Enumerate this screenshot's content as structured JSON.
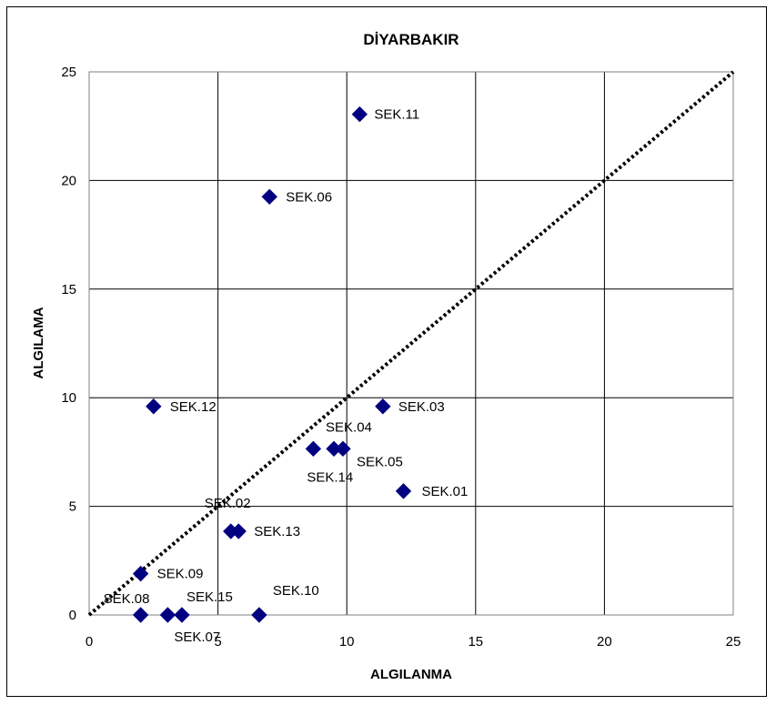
{
  "chart_data": {
    "type": "scatter",
    "title": "DİYARBAKIR",
    "xlabel": "ALGILANMA",
    "ylabel": "ALGILAMA",
    "xlim": [
      0,
      25
    ],
    "ylim": [
      0,
      25
    ],
    "xticks": [
      0,
      5,
      10,
      15,
      20,
      25
    ],
    "yticks": [
      0,
      5,
      10,
      15,
      20,
      25
    ],
    "grid": true,
    "legend": "none",
    "marker_color": "#000080",
    "reference_line": {
      "from": [
        0,
        0
      ],
      "to": [
        25,
        25
      ],
      "style": "dotted",
      "color": "#000000"
    },
    "points": [
      {
        "label": "SEK.01",
        "x": 12.2,
        "y": 5.7
      },
      {
        "label": "SEK.02",
        "x": 5.5,
        "y": 3.85
      },
      {
        "label": "SEK.03",
        "x": 11.4,
        "y": 9.6
      },
      {
        "label": "SEK.04",
        "x": 9.5,
        "y": 7.65
      },
      {
        "label": "SEK.05",
        "x": 9.85,
        "y": 7.65
      },
      {
        "label": "SEK.06",
        "x": 7.0,
        "y": 19.25
      },
      {
        "label": "SEK.07",
        "x": 3.05,
        "y": 0
      },
      {
        "label": "SEK.08",
        "x": 2.0,
        "y": 0
      },
      {
        "label": "SEK.09",
        "x": 2.0,
        "y": 1.9
      },
      {
        "label": "SEK.10",
        "x": 6.6,
        "y": 0
      },
      {
        "label": "SEK.11",
        "x": 10.5,
        "y": 23.05
      },
      {
        "label": "SEK.12",
        "x": 2.5,
        "y": 9.6
      },
      {
        "label": "SEK.13",
        "x": 5.8,
        "y": 3.85
      },
      {
        "label": "SEK.14",
        "x": 8.7,
        "y": 7.65
      },
      {
        "label": "SEK.15",
        "x": 3.6,
        "y": 0
      }
    ]
  }
}
